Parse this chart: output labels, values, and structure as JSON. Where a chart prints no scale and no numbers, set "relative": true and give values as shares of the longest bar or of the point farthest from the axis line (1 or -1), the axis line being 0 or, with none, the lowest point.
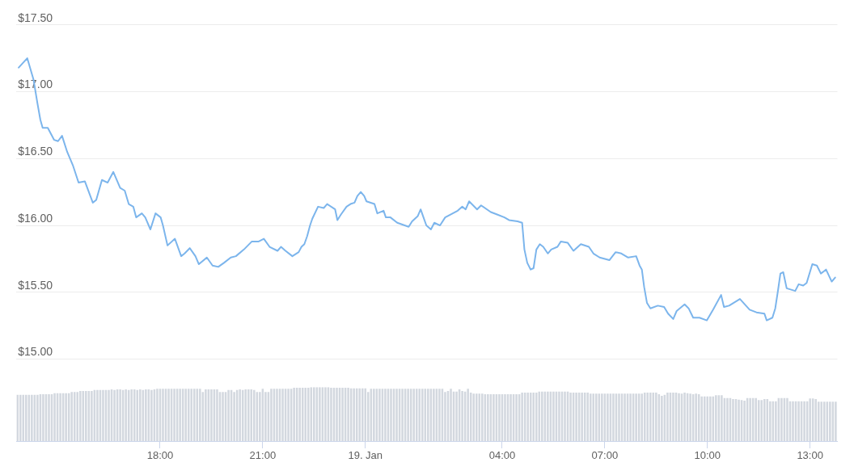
{
  "chart_data": [
    {
      "type": "line",
      "color": "#7cb5ec",
      "x": [
        "--01-18T13:52",
        "--01-18T14:07",
        "--01-18T14:18",
        "--01-18T14:25",
        "--01-18T14:30",
        "--01-18T14:34",
        "--01-18T14:43",
        "--01-18T14:54",
        "--01-18T15:01",
        "--01-18T15:08",
        "--01-18T15:17",
        "--01-18T15:27",
        "--01-18T15:37",
        "--01-18T15:48",
        "--01-18T16:02",
        "--01-18T16:08",
        "--01-18T16:18",
        "--01-18T16:28",
        "--01-18T16:38",
        "--01-18T16:50",
        "--01-18T16:58",
        "--01-18T17:05",
        "--01-18T17:13",
        "--01-18T17:18",
        "--01-18T17:28",
        "--01-18T17:34",
        "--01-18T17:43",
        "--01-18T17:52",
        "--01-18T18:01",
        "--01-18T18:05",
        "--01-18T18:13",
        "--01-18T18:26",
        "--01-18T18:37",
        "--01-18T18:43",
        "--01-18T18:52",
        "--01-18T19:02",
        "--01-18T19:08",
        "--01-18T19:22",
        "--01-18T19:32",
        "--01-18T19:42",
        "--01-18T19:52",
        "--01-18T20:04",
        "--01-18T20:13",
        "--01-18T20:27",
        "--01-18T20:41",
        "--01-18T20:53",
        "--01-18T21:02",
        "--01-18T21:12",
        "--01-18T21:26",
        "--01-18T21:32",
        "--01-18T21:40",
        "--01-18T21:52",
        "--01-18T22:03",
        "--01-18T22:08",
        "--01-18T22:13",
        "--01-18T22:18",
        "--01-18T22:23",
        "--01-18T22:27",
        "--01-18T22:37",
        "--01-18T22:47",
        "--01-18T22:53",
        "--01-18T23:07",
        "--01-18T23:11",
        "--01-18T23:17",
        "--01-18T23:27",
        "--01-18T23:34",
        "--01-18T23:41",
        "--01-18T23:46",
        "--01-18T23:52",
        "--01-18T23:58",
        "--01-19T00:02",
        "--01-19T00:16",
        "--01-19T00:21",
        "--01-19T00:32",
        "--01-19T00:36",
        "--01-19T00:44",
        "--01-19T00:56",
        "--01-19T01:16",
        "--01-19T01:22",
        "--01-19T01:32",
        "--01-19T01:37",
        "--01-19T01:42",
        "--01-19T01:47",
        "--01-19T01:55",
        "--01-19T02:01",
        "--01-19T02:11",
        "--01-19T02:20",
        "--01-19T02:42",
        "--01-19T02:50",
        "--01-19T02:56",
        "--01-19T03:02",
        "--01-19T03:16",
        "--01-19T03:23",
        "--01-19T03:40",
        "--01-19T03:52",
        "--01-19T04:04",
        "--01-19T04:12",
        "--01-19T04:27",
        "--01-19T04:35",
        "--01-19T04:39",
        "--01-19T04:44",
        "--01-19T04:50",
        "--01-19T04:55",
        "--01-19T05:00",
        "--01-19T05:06",
        "--01-19T05:12",
        "--01-19T05:20",
        "--01-19T05:26",
        "--01-19T05:37",
        "--01-19T05:43",
        "--01-19T05:55",
        "--01-19T06:05",
        "--01-19T06:18",
        "--01-19T06:32",
        "--01-19T06:40",
        "--01-19T06:51",
        "--01-19T07:08",
        "--01-19T07:19",
        "--01-19T07:29",
        "--01-19T07:41",
        "--01-19T07:55",
        "--01-19T08:01",
        "--01-19T08:05",
        "--01-19T08:09",
        "--01-19T08:14",
        "--01-19T08:20",
        "--01-19T08:33",
        "--01-19T08:44",
        "--01-19T08:51",
        "--01-19T09:00",
        "--01-19T09:06",
        "--01-19T09:20",
        "--01-19T09:27",
        "--01-19T09:35",
        "--01-19T09:46",
        "--01-19T09:59",
        "--01-19T10:10",
        "--01-19T10:24",
        "--01-19T10:29",
        "--01-19T10:38",
        "--01-19T10:57",
        "--01-19T11:14",
        "--01-19T11:26",
        "--01-19T11:40",
        "--01-19T11:44",
        "--01-19T11:54",
        "--01-19T11:59",
        "--01-19T12:04",
        "--01-19T12:08",
        "--01-19T12:13",
        "--01-19T12:19",
        "--01-19T12:34",
        "--01-19T12:40",
        "--01-19T12:48",
        "--01-19T12:54",
        "--01-19T13:04",
        "--01-19T13:12",
        "--01-19T13:19",
        "--01-19T13:28",
        "--01-19T13:38",
        "--01-19T13:44"
      ],
      "values": [
        17.18,
        17.25,
        17.09,
        16.91,
        16.79,
        16.73,
        16.73,
        16.64,
        16.63,
        16.67,
        16.55,
        16.45,
        16.32,
        16.33,
        16.17,
        16.19,
        16.34,
        16.32,
        16.4,
        16.28,
        16.26,
        16.16,
        16.14,
        16.06,
        16.09,
        16.06,
        15.97,
        16.09,
        16.06,
        16,
        15.85,
        15.9,
        15.77,
        15.79,
        15.83,
        15.77,
        15.71,
        15.76,
        15.7,
        15.69,
        15.72,
        15.76,
        15.77,
        15.82,
        15.88,
        15.88,
        15.9,
        15.84,
        15.81,
        15.84,
        15.81,
        15.77,
        15.8,
        15.84,
        15.86,
        15.92,
        16,
        16.05,
        16.14,
        16.13,
        16.16,
        16.12,
        16.04,
        16.08,
        16.14,
        16.16,
        16.17,
        16.22,
        16.25,
        16.22,
        16.18,
        16.16,
        16.09,
        16.11,
        16.06,
        16.06,
        16.02,
        15.99,
        16.03,
        16.07,
        16.12,
        16.06,
        16,
        15.97,
        16.02,
        16,
        16.06,
        16.11,
        16.14,
        16.12,
        16.18,
        16.12,
        16.15,
        16.1,
        16.08,
        16.06,
        16.04,
        16.03,
        16.02,
        15.82,
        15.72,
        15.67,
        15.68,
        15.82,
        15.86,
        15.84,
        15.79,
        15.82,
        15.84,
        15.88,
        15.87,
        15.81,
        15.86,
        15.84,
        15.79,
        15.76,
        15.74,
        15.8,
        15.79,
        15.76,
        15.77,
        15.7,
        15.67,
        15.54,
        15.42,
        15.38,
        15.4,
        15.39,
        15.34,
        15.3,
        15.36,
        15.41,
        15.38,
        15.31,
        15.31,
        15.29,
        15.37,
        15.48,
        15.39,
        15.4,
        15.45,
        15.37,
        15.35,
        15.34,
        15.29,
        15.31,
        15.38,
        15.52,
        15.64,
        15.65,
        15.53,
        15.51,
        15.56,
        15.55,
        15.57,
        15.71,
        15.7,
        15.64,
        15.67,
        15.58,
        15.61
      ],
      "xlim": [
        "--01-18T13:48",
        "--01-19T13:48"
      ],
      "ylim": [
        15,
        17.5
      ],
      "yticks": [
        {
          "value": 15,
          "label": "$15.00"
        },
        {
          "value": 15.5,
          "label": "$15.50"
        },
        {
          "value": 16,
          "label": "$16.00"
        },
        {
          "value": 16.5,
          "label": "$16.50"
        },
        {
          "value": 17,
          "label": "$17.00"
        },
        {
          "value": 17.5,
          "label": "$17.50"
        }
      ],
      "grid": "y",
      "tick_labels": "y"
    },
    {
      "type": "bar",
      "relative": true,
      "color": "#d3d8df",
      "x": [
        "--01-18T13:50",
        "--01-18T13:55",
        "--01-18T14:00",
        "--01-18T14:05",
        "--01-18T14:10",
        "--01-18T14:15",
        "--01-18T14:20",
        "--01-18T14:25",
        "--01-18T14:30",
        "--01-18T14:35",
        "--01-18T14:40",
        "--01-18T14:45",
        "--01-18T14:50",
        "--01-18T14:55",
        "--01-18T15:00",
        "--01-18T15:05",
        "--01-18T15:10",
        "--01-18T15:15",
        "--01-18T15:20",
        "--01-18T15:25",
        "--01-18T15:30",
        "--01-18T15:35",
        "--01-18T15:40",
        "--01-18T15:45",
        "--01-18T15:50",
        "--01-18T15:55",
        "--01-18T16:00",
        "--01-18T16:05",
        "--01-18T16:10",
        "--01-18T16:15",
        "--01-18T16:20",
        "--01-18T16:25",
        "--01-18T16:30",
        "--01-18T16:35",
        "--01-18T16:40",
        "--01-18T16:45",
        "--01-18T16:50",
        "--01-18T16:55",
        "--01-18T17:00",
        "--01-18T17:05",
        "--01-18T17:10",
        "--01-18T17:15",
        "--01-18T17:20",
        "--01-18T17:25",
        "--01-18T17:30",
        "--01-18T17:35",
        "--01-18T17:40",
        "--01-18T17:45",
        "--01-18T17:50",
        "--01-18T17:55",
        "--01-18T18:00",
        "--01-18T18:05",
        "--01-18T18:10",
        "--01-18T18:15",
        "--01-18T18:20",
        "--01-18T18:25",
        "--01-18T18:30",
        "--01-18T18:35",
        "--01-18T18:40",
        "--01-18T18:45",
        "--01-18T18:50",
        "--01-18T18:55",
        "--01-18T19:00",
        "--01-18T19:05",
        "--01-18T19:10",
        "--01-18T19:15",
        "--01-18T19:20",
        "--01-18T19:25",
        "--01-18T19:30",
        "--01-18T19:35",
        "--01-18T19:40",
        "--01-18T19:45",
        "--01-18T19:50",
        "--01-18T19:55",
        "--01-18T20:00",
        "--01-18T20:05",
        "--01-18T20:10",
        "--01-18T20:15",
        "--01-18T20:20",
        "--01-18T20:25",
        "--01-18T20:30",
        "--01-18T20:35",
        "--01-18T20:40",
        "--01-18T20:45",
        "--01-18T20:50",
        "--01-18T20:55",
        "--01-18T21:00",
        "--01-18T21:05",
        "--01-18T21:10",
        "--01-18T21:15",
        "--01-18T21:20",
        "--01-18T21:25",
        "--01-18T21:30",
        "--01-18T21:35",
        "--01-18T21:40",
        "--01-18T21:45",
        "--01-18T21:50",
        "--01-18T21:55",
        "--01-18T22:00",
        "--01-18T22:05",
        "--01-18T22:10",
        "--01-18T22:15",
        "--01-18T22:20",
        "--01-18T22:25",
        "--01-18T22:30",
        "--01-18T22:35",
        "--01-18T22:40",
        "--01-18T22:45",
        "--01-18T22:50",
        "--01-18T22:55",
        "--01-18T23:00",
        "--01-18T23:05",
        "--01-18T23:10",
        "--01-18T23:15",
        "--01-18T23:20",
        "--01-18T23:25",
        "--01-18T23:30",
        "--01-18T23:35",
        "--01-18T23:40",
        "--01-18T23:45",
        "--01-18T23:50",
        "--01-18T23:55",
        "--01-19T00:00",
        "--01-19T00:05",
        "--01-19T00:10",
        "--01-19T00:15",
        "--01-19T00:20",
        "--01-19T00:25",
        "--01-19T00:30",
        "--01-19T00:35",
        "--01-19T00:40",
        "--01-19T00:45",
        "--01-19T00:50",
        "--01-19T00:55",
        "--01-19T01:00",
        "--01-19T01:05",
        "--01-19T01:10",
        "--01-19T01:15",
        "--01-19T01:20",
        "--01-19T01:25",
        "--01-19T01:30",
        "--01-19T01:35",
        "--01-19T01:40",
        "--01-19T01:45",
        "--01-19T01:50",
        "--01-19T01:55",
        "--01-19T02:00",
        "--01-19T02:05",
        "--01-19T02:10",
        "--01-19T02:15",
        "--01-19T02:20",
        "--01-19T02:25",
        "--01-19T02:30",
        "--01-19T02:35",
        "--01-19T02:40",
        "--01-19T02:45",
        "--01-19T02:50",
        "--01-19T02:55",
        "--01-19T03:00",
        "--01-19T03:05",
        "--01-19T03:10",
        "--01-19T03:15",
        "--01-19T03:20",
        "--01-19T03:25",
        "--01-19T03:30",
        "--01-19T03:35",
        "--01-19T03:40",
        "--01-19T03:45",
        "--01-19T03:50",
        "--01-19T03:55",
        "--01-19T04:00",
        "--01-19T04:05",
        "--01-19T04:10",
        "--01-19T04:15",
        "--01-19T04:20",
        "--01-19T04:25",
        "--01-19T04:30",
        "--01-19T04:35",
        "--01-19T04:40",
        "--01-19T04:45",
        "--01-19T04:50",
        "--01-19T04:55",
        "--01-19T05:00",
        "--01-19T05:05",
        "--01-19T05:10",
        "--01-19T05:15",
        "--01-19T05:20",
        "--01-19T05:25",
        "--01-19T05:30",
        "--01-19T05:35",
        "--01-19T05:40",
        "--01-19T05:45",
        "--01-19T05:50",
        "--01-19T05:55",
        "--01-19T06:00",
        "--01-19T06:05",
        "--01-19T06:10",
        "--01-19T06:15",
        "--01-19T06:20",
        "--01-19T06:25",
        "--01-19T06:30",
        "--01-19T06:35",
        "--01-19T06:40",
        "--01-19T06:45",
        "--01-19T06:50",
        "--01-19T06:55",
        "--01-19T07:00",
        "--01-19T07:05",
        "--01-19T07:10",
        "--01-19T07:15",
        "--01-19T07:20",
        "--01-19T07:25",
        "--01-19T07:30",
        "--01-19T07:35",
        "--01-19T07:40",
        "--01-19T07:45",
        "--01-19T07:50",
        "--01-19T07:55",
        "--01-19T08:00",
        "--01-19T08:05",
        "--01-19T08:10",
        "--01-19T08:15",
        "--01-19T08:20",
        "--01-19T08:25",
        "--01-19T08:30",
        "--01-19T08:35",
        "--01-19T08:40",
        "--01-19T08:45",
        "--01-19T08:50",
        "--01-19T08:55",
        "--01-19T09:00",
        "--01-19T09:05",
        "--01-19T09:10",
        "--01-19T09:15",
        "--01-19T09:20",
        "--01-19T09:25",
        "--01-19T09:30",
        "--01-19T09:35",
        "--01-19T09:40",
        "--01-19T09:45",
        "--01-19T09:50",
        "--01-19T09:55",
        "--01-19T10:00",
        "--01-19T10:05",
        "--01-19T10:10",
        "--01-19T10:15",
        "--01-19T10:20",
        "--01-19T10:25",
        "--01-19T10:30",
        "--01-19T10:35",
        "--01-19T10:40",
        "--01-19T10:45",
        "--01-19T10:50",
        "--01-19T10:55",
        "--01-19T11:00",
        "--01-19T11:05",
        "--01-19T11:10",
        "--01-19T11:15",
        "--01-19T11:20",
        "--01-19T11:25",
        "--01-19T11:30",
        "--01-19T11:35",
        "--01-19T11:40",
        "--01-19T11:45",
        "--01-19T11:50",
        "--01-19T11:55",
        "--01-19T12:00",
        "--01-19T12:05",
        "--01-19T12:10",
        "--01-19T12:15",
        "--01-19T12:20",
        "--01-19T12:25",
        "--01-19T12:30",
        "--01-19T12:35",
        "--01-19T12:40",
        "--01-19T12:45",
        "--01-19T12:50",
        "--01-19T12:55",
        "--01-19T13:00",
        "--01-19T13:05",
        "--01-19T13:10",
        "--01-19T13:15",
        "--01-19T13:20",
        "--01-19T13:25",
        "--01-19T13:30",
        "--01-19T13:35",
        "--01-19T13:40",
        "--01-19T13:45"
      ],
      "values": [
        0.86,
        0.86,
        0.86,
        0.86,
        0.86,
        0.86,
        0.86,
        0.86,
        0.87,
        0.87,
        0.87,
        0.87,
        0.87,
        0.89,
        0.89,
        0.89,
        0.89,
        0.89,
        0.89,
        0.91,
        0.91,
        0.91,
        0.93,
        0.93,
        0.93,
        0.93,
        0.93,
        0.95,
        0.95,
        0.95,
        0.95,
        0.95,
        0.95,
        0.96,
        0.95,
        0.96,
        0.96,
        0.95,
        0.96,
        0.95,
        0.96,
        0.96,
        0.95,
        0.96,
        0.95,
        0.96,
        0.96,
        0.95,
        0.96,
        0.97,
        0.97,
        0.97,
        0.97,
        0.97,
        0.97,
        0.97,
        0.97,
        0.97,
        0.97,
        0.97,
        0.97,
        0.97,
        0.97,
        0.97,
        0.97,
        0.91,
        0.96,
        0.96,
        0.96,
        0.96,
        0.96,
        0.91,
        0.91,
        0.91,
        0.95,
        0.95,
        0.91,
        0.95,
        0.96,
        0.95,
        0.96,
        0.96,
        0.96,
        0.95,
        0.91,
        0.91,
        0.97,
        0.91,
        0.91,
        0.97,
        0.97,
        0.97,
        0.97,
        0.97,
        0.97,
        0.97,
        0.97,
        0.99,
        0.99,
        0.99,
        0.99,
        0.99,
        0.99,
        1,
        1,
        1,
        1,
        1,
        1,
        1,
        0.99,
        0.99,
        0.99,
        0.99,
        0.99,
        0.99,
        0.99,
        0.98,
        0.98,
        0.98,
        0.98,
        0.98,
        0.98,
        0.91,
        0.97,
        0.97,
        0.97,
        0.97,
        0.97,
        0.97,
        0.97,
        0.97,
        0.97,
        0.97,
        0.97,
        0.97,
        0.97,
        0.97,
        0.97,
        0.97,
        0.97,
        0.97,
        0.97,
        0.97,
        0.97,
        0.97,
        0.97,
        0.97,
        0.97,
        0.97,
        0.91,
        0.93,
        0.97,
        0.92,
        0.92,
        0.96,
        0.93,
        0.92,
        0.97,
        0.9,
        0.88,
        0.88,
        0.88,
        0.88,
        0.87,
        0.87,
        0.87,
        0.87,
        0.87,
        0.87,
        0.87,
        0.87,
        0.87,
        0.87,
        0.87,
        0.87,
        0.87,
        0.9,
        0.9,
        0.9,
        0.9,
        0.9,
        0.9,
        0.92,
        0.92,
        0.92,
        0.92,
        0.92,
        0.92,
        0.92,
        0.92,
        0.92,
        0.92,
        0.92,
        0.9,
        0.9,
        0.9,
        0.9,
        0.9,
        0.9,
        0.9,
        0.88,
        0.88,
        0.88,
        0.88,
        0.88,
        0.88,
        0.88,
        0.88,
        0.88,
        0.88,
        0.88,
        0.88,
        0.88,
        0.88,
        0.88,
        0.88,
        0.88,
        0.88,
        0.88,
        0.9,
        0.9,
        0.9,
        0.9,
        0.9,
        0.87,
        0.84,
        0.86,
        0.9,
        0.9,
        0.9,
        0.9,
        0.89,
        0.88,
        0.9,
        0.89,
        0.88,
        0.87,
        0.88,
        0.87,
        0.83,
        0.83,
        0.83,
        0.83,
        0.83,
        0.85,
        0.85,
        0.85,
        0.8,
        0.8,
        0.8,
        0.78,
        0.78,
        0.77,
        0.76,
        0.75,
        0.8,
        0.8,
        0.8,
        0.8,
        0.76,
        0.76,
        0.78,
        0.78,
        0.74,
        0.74,
        0.74,
        0.8,
        0.8,
        0.8,
        0.8,
        0.74,
        0.74,
        0.74,
        0.74,
        0.74,
        0.74,
        0.74,
        0.79,
        0.79,
        0.78,
        0.73,
        0.73,
        0.73,
        0.73,
        0.73,
        0.73,
        0.73
      ],
      "xlim": [
        "--01-18T13:48",
        "--01-19T13:48"
      ],
      "xticks": [
        {
          "value": "--01-18T18:00",
          "label": "18:00"
        },
        {
          "value": "--01-18T21:00",
          "label": "21:00"
        },
        {
          "value": "--01-19T00:00",
          "label": "19. Jan"
        },
        {
          "value": "--01-19T04:00",
          "label": "04:00"
        },
        {
          "value": "--01-19T07:00",
          "label": "07:00"
        },
        {
          "value": "--01-19T10:00",
          "label": "10:00"
        },
        {
          "value": "--01-19T13:00",
          "label": "13:00"
        }
      ],
      "tick_labels": "x"
    }
  ]
}
